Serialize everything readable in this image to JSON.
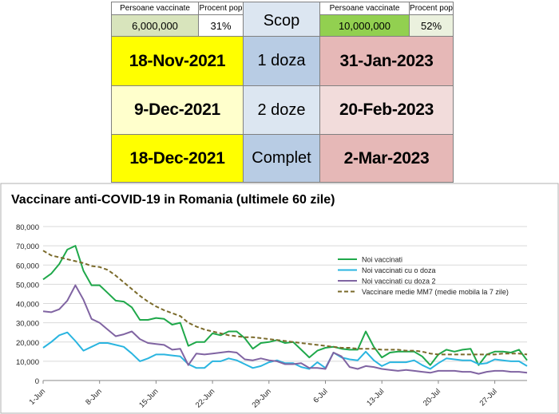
{
  "table": {
    "left": {
      "header_vaccinated": "Persoane vaccinate",
      "header_percent": "Procent pop",
      "vaccinated": "6,000,000",
      "percent": "31%"
    },
    "right": {
      "header_vaccinated": "Persoane vaccinate",
      "header_percent": "Procent pop",
      "vaccinated": "10,000,000",
      "percent": "52%"
    },
    "scop_label": "Scop",
    "rows": [
      {
        "left_date": "18-Nov-2021",
        "label": "1 doza",
        "right_date": "31-Jan-2023"
      },
      {
        "left_date": "9-Dec-2021",
        "label": "2 doze",
        "right_date": "20-Feb-2023"
      },
      {
        "left_date": "18-Dec-2021",
        "label": "Complet",
        "right_date": "2-Mar-2023"
      }
    ],
    "colors": {
      "header_bg": "#ffffff",
      "left_value_bg": "#d8e4bc",
      "right_value_green": "#92d050",
      "right_value_bg": "#ebf1de",
      "yellow": "#ffff00",
      "light_yellow": "#ffffcc",
      "blue": "#b8cce4",
      "light_blue": "#dce6f1",
      "pink": "#e6b8b7",
      "light_pink": "#f2dcdb"
    }
  },
  "chart_data": {
    "type": "line",
    "title": "Vaccinare anti-COVID-19 in Romania (ultimele 60 zile)",
    "ylim": [
      0,
      80000
    ],
    "yticks": [
      "0",
      "10,000",
      "20,000",
      "30,000",
      "40,000",
      "50,000",
      "60,000",
      "70,000",
      "80,000"
    ],
    "x_ticks": [
      "1-Jun",
      "8-Jun",
      "15-Jun",
      "22-Jun",
      "29-Jun",
      "6-Jul",
      "13-Jul",
      "20-Jul",
      "27-Jul"
    ],
    "x_tick_index": [
      0,
      7,
      14,
      21,
      28,
      35,
      42,
      49,
      56
    ],
    "grid": true,
    "legend_position": "right",
    "series": [
      {
        "name": "Noi vaccinati",
        "color": "#1fa84a",
        "dash": "",
        "values": [
          52500,
          55500,
          60500,
          68000,
          70000,
          57000,
          49500,
          49500,
          45500,
          41500,
          41000,
          38000,
          31500,
          31500,
          32500,
          32000,
          29000,
          30000,
          18000,
          20000,
          20000,
          24500,
          23500,
          25500,
          25500,
          22000,
          16500,
          19500,
          20000,
          21000,
          19500,
          20000,
          16000,
          12000,
          15500,
          17000,
          17500,
          16500,
          16000,
          16000,
          25500,
          17500,
          12000,
          14500,
          15000,
          15000,
          15000,
          12500,
          8000,
          13500,
          16000,
          15000,
          16000,
          16500,
          8000,
          13500,
          15000,
          15000,
          14500,
          16000,
          10500
        ]
      },
      {
        "name": "Noi vaccinati cu o doza",
        "color": "#2ab5e0",
        "dash": "",
        "values": [
          17000,
          20000,
          23500,
          25000,
          20500,
          15500,
          17500,
          19500,
          19500,
          18500,
          17500,
          14000,
          10000,
          11500,
          13500,
          13500,
          13000,
          12500,
          8500,
          6500,
          6500,
          10000,
          10000,
          11500,
          10500,
          8500,
          6500,
          7500,
          9500,
          10500,
          9000,
          9000,
          7000,
          6000,
          9500,
          6500,
          14500,
          12000,
          11000,
          10500,
          15000,
          10500,
          7500,
          9500,
          9500,
          9500,
          10500,
          8000,
          6000,
          9000,
          11500,
          11000,
          10500,
          10500,
          8500,
          9000,
          11000,
          10500,
          10000,
          10000,
          7500
        ]
      },
      {
        "name": "Noi vaccinati cu doza 2",
        "color": "#8064a2",
        "dash": "",
        "values": [
          36000,
          35500,
          37000,
          41500,
          49500,
          42000,
          32000,
          30000,
          26500,
          23000,
          24000,
          25500,
          21500,
          19500,
          19000,
          18500,
          16000,
          16500,
          8000,
          14000,
          13500,
          14000,
          14500,
          15000,
          14500,
          11000,
          10500,
          11500,
          10500,
          10000,
          8500,
          8500,
          9000,
          6500,
          6500,
          6000,
          14500,
          12500,
          7000,
          6000,
          7500,
          7000,
          6000,
          5500,
          5000,
          5500,
          5000,
          4500,
          4000,
          5000,
          5000,
          5000,
          4500,
          4500,
          3500,
          4500,
          5000,
          5000,
          4500,
          4500,
          4000
        ]
      },
      {
        "name": "Vaccinare medie MM7 (medie mobila la 7 zile)",
        "color": "#7a6a2a",
        "dash": "5,3",
        "values": [
          67500,
          65000,
          64000,
          63000,
          62000,
          61000,
          59500,
          59000,
          57500,
          54500,
          51000,
          47500,
          44000,
          41000,
          38500,
          36500,
          35000,
          33500,
          30000,
          28000,
          26500,
          25500,
          24500,
          23500,
          23000,
          22500,
          22500,
          22000,
          21500,
          21000,
          20500,
          20000,
          19500,
          19000,
          18500,
          18000,
          17500,
          17000,
          17000,
          16500,
          16500,
          16500,
          16000,
          16000,
          16000,
          15500,
          15500,
          15000,
          14000,
          13500,
          13500,
          13500,
          13500,
          13500,
          13500,
          13500,
          13500,
          14000,
          14000,
          14000,
          13500
        ]
      }
    ]
  }
}
